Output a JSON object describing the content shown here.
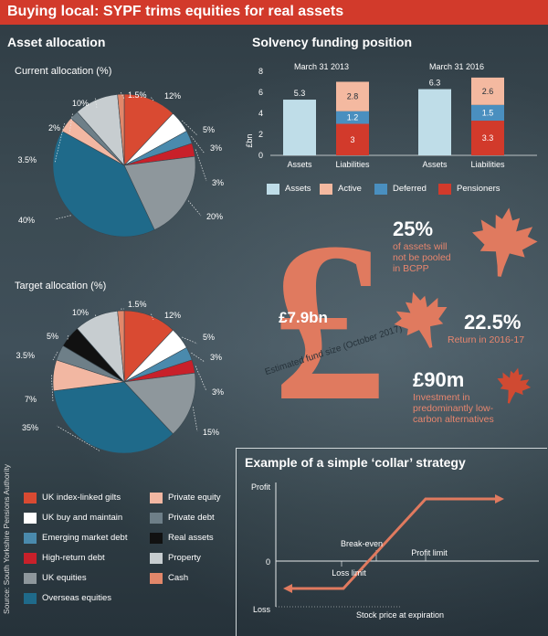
{
  "header": {
    "title": "Buying local: SYPF trims equities for real assets"
  },
  "asset_allocation": {
    "title": "Asset allocation",
    "current_title": "Current allocation (%)",
    "target_title": "Target allocation (%)"
  },
  "solvency": {
    "title": "Solvency funding position"
  },
  "collar": {
    "title": "Example of a simple ‘collar’ strategy"
  },
  "source": "Source: South Yorkshire Pensions Authority",
  "colors": {
    "uk_index_linked_gilts": "#d94a32",
    "uk_buy_and_maintain": "#ffffff",
    "emerging_market_debt": "#4a8aad",
    "high_return_debt": "#c8202a",
    "uk_equities": "#8e979c",
    "overseas_equities": "#1f6a8a",
    "private_equity": "#f2b7a2",
    "private_debt": "#6e7f88",
    "real_assets": "#111111",
    "property": "#c7cdd0",
    "cash": "#e2876a",
    "assets_bar": "#bfdde8",
    "active_bar": "#f4b9a0",
    "deferred_bar": "#4a8fbf",
    "pensioners_bar": "#d23a2b",
    "accent": "#e07a5f"
  },
  "chart_data": [
    {
      "type": "pie",
      "title": "Current allocation (%)",
      "slices": [
        {
          "name": "UK index-linked gilts",
          "value": 12,
          "label": "12%",
          "color": "#d94a32"
        },
        {
          "name": "UK buy and maintain",
          "value": 5,
          "label": "5%",
          "color": "#ffffff"
        },
        {
          "name": "Emerging market debt",
          "value": 3,
          "label": "3%",
          "color": "#4a8aad"
        },
        {
          "name": "High-return debt",
          "value": 3,
          "label": "3%",
          "color": "#c8202a"
        },
        {
          "name": "UK equities",
          "value": 20,
          "label": "20%",
          "color": "#8e979c"
        },
        {
          "name": "Overseas equities",
          "value": 40,
          "label": "40%",
          "color": "#1f6a8a"
        },
        {
          "name": "Private equity",
          "value": 3.5,
          "label": "3.5%",
          "color": "#f2b7a2"
        },
        {
          "name": "Private debt",
          "value": 2,
          "label": "2%",
          "color": "#6e7f88"
        },
        {
          "name": "Property",
          "value": 10,
          "label": "10%",
          "color": "#c7cdd0"
        },
        {
          "name": "Cash",
          "value": 1.5,
          "label": "1.5%",
          "color": "#e2876a"
        }
      ]
    },
    {
      "type": "pie",
      "title": "Target allocation (%)",
      "slices": [
        {
          "name": "UK index-linked gilts",
          "value": 12,
          "label": "12%",
          "color": "#d94a32"
        },
        {
          "name": "UK buy and maintain",
          "value": 5,
          "label": "5%",
          "color": "#ffffff"
        },
        {
          "name": "Emerging market debt",
          "value": 3,
          "label": "3%",
          "color": "#4a8aad"
        },
        {
          "name": "High-return debt",
          "value": 3,
          "label": "3%",
          "color": "#c8202a"
        },
        {
          "name": "UK equities",
          "value": 15,
          "label": "15%",
          "color": "#8e979c"
        },
        {
          "name": "Overseas equities",
          "value": 35,
          "label": "35%",
          "color": "#1f6a8a"
        },
        {
          "name": "Private equity",
          "value": 7,
          "label": "7%",
          "color": "#f2b7a2"
        },
        {
          "name": "Private debt",
          "value": 3.5,
          "label": "3.5%",
          "color": "#6e7f88"
        },
        {
          "name": "Real assets",
          "value": 5,
          "label": "5%",
          "color": "#111111"
        },
        {
          "name": "Property",
          "value": 10,
          "label": "10%",
          "color": "#c7cdd0"
        },
        {
          "name": "Cash",
          "value": 1.5,
          "label": "1.5%",
          "color": "#e2876a"
        }
      ]
    },
    {
      "type": "bar",
      "stacked": true,
      "title": "Solvency funding position",
      "ylabel": "£bn",
      "ylim": [
        0,
        8
      ],
      "yticks": [
        0,
        2,
        4,
        6,
        8
      ],
      "groups": [
        {
          "date": "March 31 2013",
          "assets": 5.3,
          "liabilities": {
            "pensioners": 3,
            "deferred": 1.2,
            "active": 2.8
          }
        },
        {
          "date": "March 31 2016",
          "assets": 6.3,
          "liabilities": {
            "pensioners": 3.3,
            "deferred": 1.5,
            "active": 2.6
          }
        }
      ],
      "categories": [
        "Assets",
        "Liabilities"
      ],
      "legend": [
        "Assets",
        "Active",
        "Deferred",
        "Pensioners"
      ],
      "legend_placement": "bottom"
    },
    {
      "type": "line",
      "title": "Example of a simple ‘collar’ strategy",
      "xlabel": "Stock price at expiration",
      "y_tick_labels": [
        "Profit",
        "0",
        "Loss"
      ],
      "annotations": [
        "Break-even",
        "Profit limit",
        "Loss limit"
      ]
    }
  ],
  "legend": [
    {
      "label": "UK index-linked gilts",
      "color": "#d94a32"
    },
    {
      "label": "UK buy and maintain",
      "color": "#ffffff"
    },
    {
      "label": "Emerging market debt",
      "color": "#4a8aad"
    },
    {
      "label": "High-return debt",
      "color": "#c8202a"
    },
    {
      "label": "UK equities",
      "color": "#8e979c"
    },
    {
      "label": "Overseas equities",
      "color": "#1f6a8a"
    },
    {
      "label": "Private equity",
      "color": "#f2b7a2"
    },
    {
      "label": "Private debt",
      "color": "#6e7f88"
    },
    {
      "label": "Real assets",
      "color": "#111111"
    },
    {
      "label": "Property",
      "color": "#c7cdd0"
    },
    {
      "label": "Cash",
      "color": "#e2876a"
    }
  ],
  "fund_size": {
    "value": "£7.9bn",
    "caption": "Estimated fund size (October 2017)"
  },
  "stats": [
    {
      "value": "25%",
      "lines": [
        "of assets will",
        "not be pooled",
        "in BCPP"
      ]
    },
    {
      "value": "22.5%",
      "lines": [
        "Return in 2016-17"
      ]
    },
    {
      "value": "£90m",
      "lines": [
        "Investment in",
        "predominantly low-",
        "carbon alternatives"
      ]
    }
  ]
}
